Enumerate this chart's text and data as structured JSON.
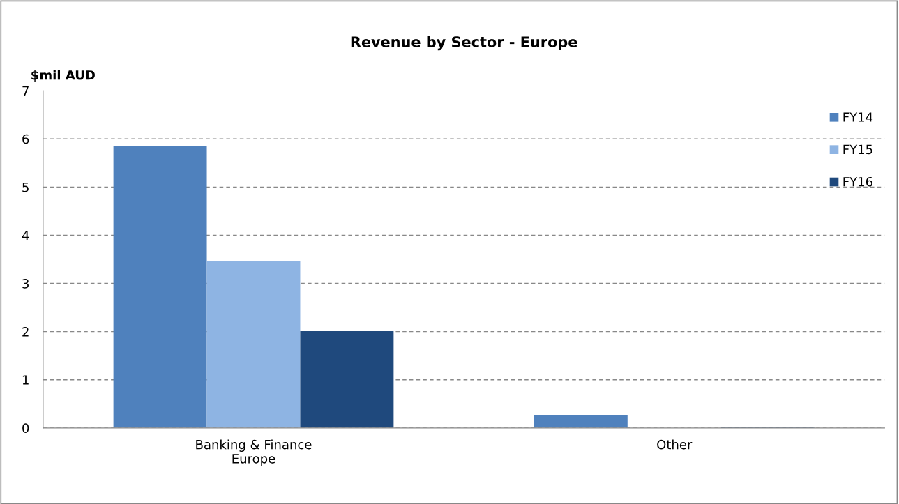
{
  "chart_data": {
    "type": "bar",
    "title": "Revenue by Sector - Europe",
    "ylabel": "$mil AUD",
    "categories": [
      "Banking & Finance\nEurope",
      "Other"
    ],
    "series": [
      {
        "name": "FY14",
        "color": "#4f81bd",
        "values": [
          5.86,
          0.27
        ]
      },
      {
        "name": "FY15",
        "color": "#8eb4e3",
        "values": [
          3.47,
          0
        ]
      },
      {
        "name": "FY16",
        "color": "#1f497d",
        "values": [
          2.01,
          0.02
        ]
      }
    ],
    "ylim": [
      0,
      7
    ],
    "yticks": [
      0,
      1,
      2,
      3,
      4,
      5,
      6,
      7
    ],
    "grid": "y",
    "legend": "top right"
  }
}
